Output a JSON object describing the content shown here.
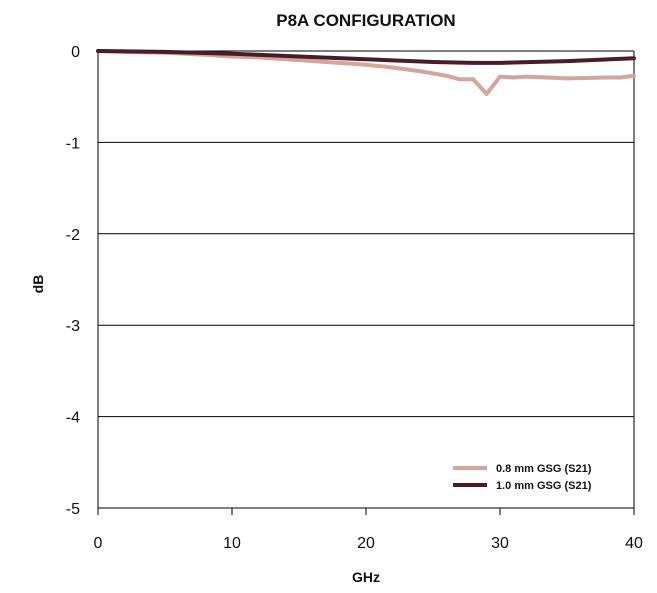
{
  "chart_data": {
    "type": "line",
    "title": "P8A CONFIGURATION",
    "xlabel": "GHz",
    "ylabel": "dB",
    "xlim": [
      0,
      40
    ],
    "ylim": [
      -5,
      0
    ],
    "x_ticks": [
      0,
      10,
      20,
      30,
      40
    ],
    "x_tick_labels": [
      "0",
      "10",
      "20",
      "30",
      "40"
    ],
    "y_ticks": [
      0,
      -1,
      -2,
      -3,
      -4,
      -5
    ],
    "y_tick_labels": [
      "0",
      "-1",
      "-2",
      "-3",
      "-4",
      "-5"
    ],
    "grid": "horizontal",
    "legend_position": "bottom-right",
    "series": [
      {
        "name": "0.8 mm GSG (S21)",
        "color": "#d4a59c",
        "x": [
          0,
          2,
          5,
          8,
          10,
          12,
          15,
          18,
          20,
          22,
          24,
          26,
          27,
          28,
          29,
          30,
          31,
          32,
          35,
          38,
          39,
          40
        ],
        "y": [
          0,
          -0.01,
          -0.02,
          -0.04,
          -0.06,
          -0.07,
          -0.1,
          -0.13,
          -0.15,
          -0.18,
          -0.22,
          -0.27,
          -0.31,
          -0.31,
          -0.47,
          -0.28,
          -0.29,
          -0.28,
          -0.3,
          -0.29,
          -0.29,
          -0.27
        ]
      },
      {
        "name": "1.0 mm GSG (S21)",
        "color": "#4a1c24",
        "x": [
          0,
          5,
          10,
          15,
          20,
          25,
          28,
          30,
          35,
          40
        ],
        "y": [
          0,
          -0.01,
          -0.03,
          -0.06,
          -0.09,
          -0.12,
          -0.13,
          -0.13,
          -0.11,
          -0.08
        ]
      }
    ]
  }
}
